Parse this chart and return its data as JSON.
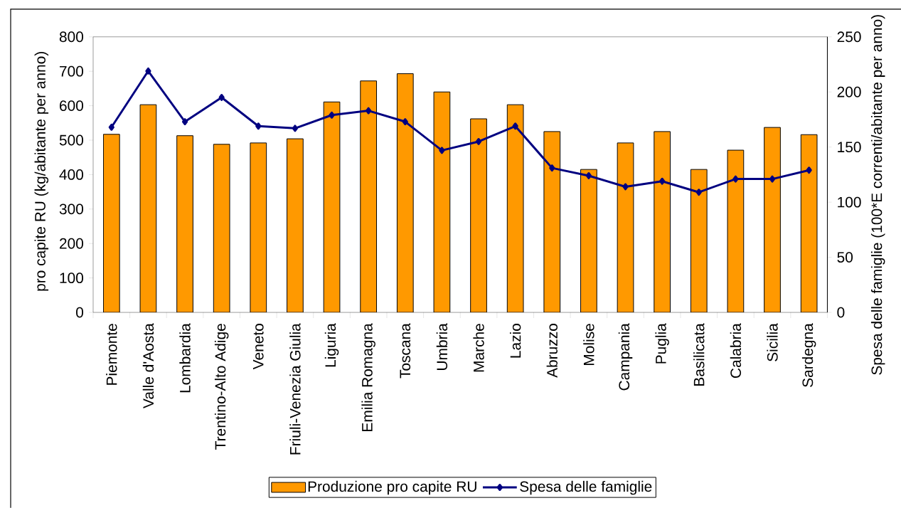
{
  "chart_data": {
    "type": "bar",
    "categories": [
      "Piemonte",
      "Valle d'Aosta",
      "Lombardia",
      "Trentino-Alto Adige",
      "Veneto",
      "Friuli-Venezia Giulia",
      "Liguria",
      "Emilia Romagna",
      "Toscana",
      "Umbria",
      "Marche",
      "Lazio",
      "Abruzzo",
      "Molise",
      "Campania",
      "Puglia",
      "Basilicata",
      "Calabria",
      "Sicilia",
      "Sardegna"
    ],
    "series": [
      {
        "name": "Produzione pro capite RU",
        "color": "#ff9900",
        "values": [
          517,
          603,
          513,
          488,
          492,
          504,
          611,
          672,
          693,
          640,
          562,
          603,
          525,
          415,
          492,
          525,
          415,
          471,
          537,
          516
        ]
      },
      {
        "name": "Spesa delle famiglie",
        "type": "line",
        "axis": "y2",
        "color": "#000080",
        "marker": "diamond",
        "values": [
          168,
          219,
          173,
          195,
          169,
          167,
          179,
          183,
          173,
          147,
          155,
          169,
          131,
          124,
          114,
          119,
          109,
          121,
          121,
          129
        ]
      }
    ],
    "ylabel": "pro capite RU (kg/abitante per anno)",
    "y2label": "Spesa delle famiglie (100*E correnti/abitante per anno)",
    "ylim": [
      0,
      800
    ],
    "yticks": [
      0,
      100,
      200,
      300,
      400,
      500,
      600,
      700,
      800
    ],
    "y2lim": [
      0,
      250
    ],
    "y2ticks": [
      0,
      50,
      100,
      150,
      200,
      250
    ],
    "legend": "bottom"
  }
}
